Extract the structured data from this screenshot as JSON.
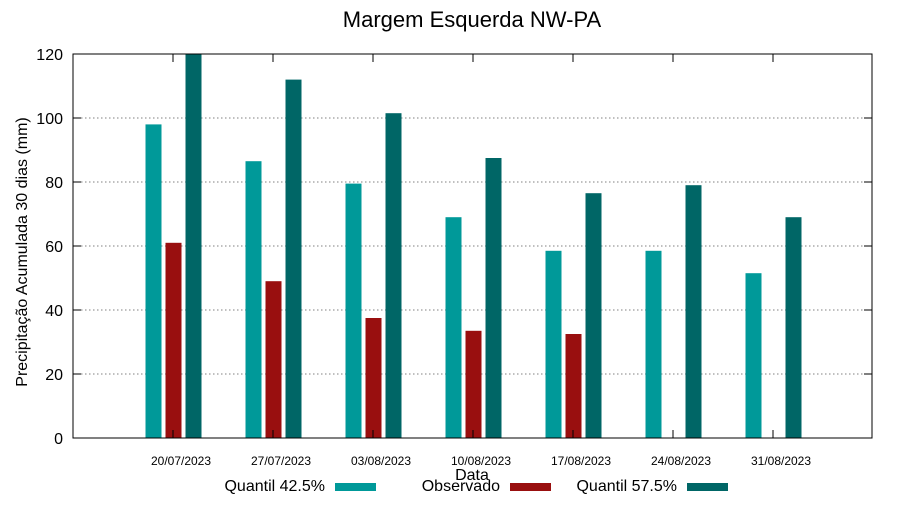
{
  "chart_data": {
    "type": "bar",
    "title": "Margem Esquerda NW-PA",
    "xlabel": "Data",
    "ylabel": "Precipitação Acumulada 30 dias (mm)",
    "ylim": [
      0,
      120
    ],
    "yticks": [
      0,
      20,
      40,
      60,
      80,
      100,
      120
    ],
    "grid": true,
    "legend_position": "bottom",
    "categories": [
      "20/07/2023",
      "27/07/2023",
      "03/08/2023",
      "10/08/2023",
      "17/08/2023",
      "24/08/2023",
      "31/08/2023"
    ],
    "series": [
      {
        "name": "Quantil 42.5%",
        "color": "#009999",
        "values": [
          98,
          86.5,
          79.5,
          69,
          58.5,
          58.5,
          51.5
        ]
      },
      {
        "name": "Observado",
        "color": "#990f0f",
        "values": [
          61,
          49,
          37.5,
          33.5,
          32.5,
          null,
          null
        ]
      },
      {
        "name": "Quantil 57.5%",
        "color": "#006666",
        "values": [
          120,
          112,
          101.5,
          87.5,
          76.5,
          79,
          69
        ]
      }
    ]
  }
}
